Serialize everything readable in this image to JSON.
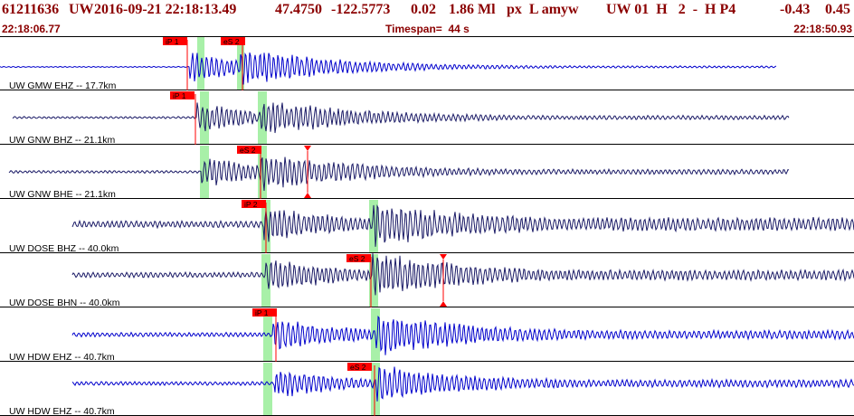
{
  "header": {
    "event_id": "61211636",
    "network": "UW",
    "datetime": "2016-09-21 22:18:13.49",
    "latitude": "47.4750",
    "longitude": "-122.5773",
    "depth": "0.02",
    "magnitude": "1.86 Ml",
    "flags": "px  L amyw",
    "quality": "UW 01  H   2  -  H P4",
    "value1": "-0.43",
    "value2": "0.45",
    "start_time": "22:18:06.77",
    "timespan_label": "Timespan=  44 s",
    "end_time": "22:18:50.93"
  },
  "colors": {
    "header_text": "#8b0000",
    "pick_box": "#ff0000",
    "pick_line": "#ff0000",
    "pick_window": "#a8f0a8",
    "trace_blue": "#0000cc",
    "trace_navy": "#1a1a66",
    "border": "#000000"
  },
  "channels": [
    {
      "label": "UW GMW EHZ -- 17.7km",
      "color": "trace_blue",
      "picks": [
        {
          "label": "iP 1"
        },
        {
          "label": "eS 2"
        }
      ],
      "amp_markers": false
    },
    {
      "label": "UW GNW BHZ -- 21.1km",
      "color": "trace_navy",
      "picks": [
        {
          "label": "iP 1"
        }
      ],
      "amp_markers": false
    },
    {
      "label": "UW GNW BHE -- 21.1km",
      "color": "trace_navy",
      "picks": [
        {
          "label": "eS 2"
        }
      ],
      "amp_markers": true
    },
    {
      "label": "UW DOSE BHZ -- 40.0km",
      "color": "trace_navy",
      "picks": [
        {
          "label": "iP 2"
        }
      ],
      "amp_markers": false
    },
    {
      "label": "UW DOSE BHN -- 40.0km",
      "color": "trace_navy",
      "picks": [
        {
          "label": "eS 2"
        }
      ],
      "amp_markers": true
    },
    {
      "label": "UW HDW EHZ -- 40.7km",
      "color": "trace_blue",
      "picks": [
        {
          "label": "iP 1"
        }
      ],
      "amp_markers": false
    },
    {
      "label": "UW HDW EHZ -- 40.7km",
      "color": "trace_blue",
      "picks": [
        {
          "label": "eS 2"
        }
      ],
      "amp_markers": false
    }
  ]
}
